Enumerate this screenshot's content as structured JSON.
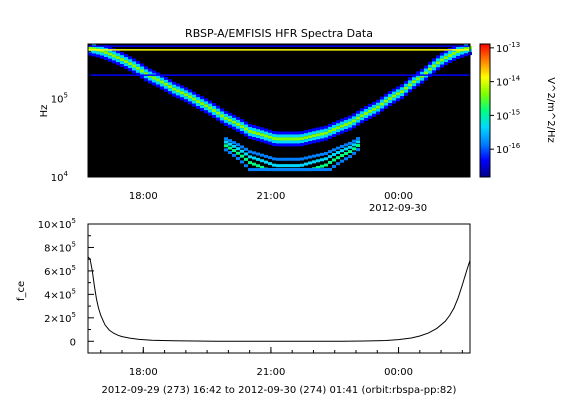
{
  "chart_data": [
    {
      "type": "heatmap",
      "title": "RBSP-A/EMFISIS  HFR Spectra Data",
      "ylabel": "Hz",
      "y_scale": "log",
      "ylim": [
        10000,
        500000
      ],
      "y_ticks": [
        {
          "value": 10000,
          "base": "10",
          "exp": "4"
        },
        {
          "value": 100000,
          "base": "10",
          "exp": "5"
        }
      ],
      "x_ticks": [
        {
          "hours": 1.3,
          "label": "18:00"
        },
        {
          "hours": 4.3,
          "label": "21:00"
        },
        {
          "hours": 7.3,
          "label": "00:00"
        }
      ],
      "x_sublabel": "2012-09-30",
      "xlim_hours": [
        0,
        8.98
      ],
      "colorbar": {
        "label": "V^2/m^2/Hz",
        "scale": "log",
        "range": [
          1.5e-17,
          1.3e-13
        ],
        "ticks": [
          {
            "value": 1e-13,
            "base": "10",
            "exp": "-13"
          },
          {
            "value": 1e-14,
            "base": "10",
            "exp": "-14"
          },
          {
            "value": 1e-15,
            "base": "10",
            "exp": "-15"
          },
          {
            "value": 1e-16,
            "base": "10",
            "exp": "-16"
          }
        ],
        "colors": [
          "#000088",
          "#0000ff",
          "#0080ff",
          "#00d8ff",
          "#00ff80",
          "#80ff00",
          "#ffff00",
          "#ff8000",
          "#ff0000"
        ]
      },
      "emission_band": {
        "hours": [
          0,
          0.3,
          0.8,
          1.4,
          2.0,
          2.6,
          3.2,
          3.8,
          4.4,
          5.0,
          5.6,
          6.2,
          6.8,
          7.4,
          7.9,
          8.3,
          8.7,
          8.98
        ],
        "freq_hz": [
          470000,
          430000,
          330000,
          210000,
          140000,
          95000,
          60000,
          40000,
          32000,
          32000,
          38000,
          52000,
          80000,
          130000,
          210000,
          320000,
          420000,
          470000
        ]
      }
    },
    {
      "type": "line",
      "ylabel": "f_ce",
      "ylim": [
        -100000,
        1000000
      ],
      "y_ticks": [
        {
          "value": 0,
          "mant": "0",
          "exp": ""
        },
        {
          "value": 200000,
          "mant": "2×10",
          "exp": "5"
        },
        {
          "value": 400000,
          "mant": "4×10",
          "exp": "5"
        },
        {
          "value": 600000,
          "mant": "6×10",
          "exp": "5"
        },
        {
          "value": 800000,
          "mant": "8×10",
          "exp": "5"
        },
        {
          "value": 1000000,
          "mant": "10×10",
          "exp": "5"
        }
      ],
      "x_ticks": [
        {
          "hours": 1.3,
          "label": "18:00"
        },
        {
          "hours": 4.3,
          "label": "21:00"
        },
        {
          "hours": 7.3,
          "label": "00:00"
        }
      ],
      "xlim_hours": [
        0,
        8.98
      ],
      "series": [
        {
          "x": [
            0,
            0.05,
            0.1,
            0.15,
            0.2,
            0.25,
            0.3,
            0.4,
            0.5,
            0.6,
            0.7,
            0.8,
            1.0,
            1.2,
            1.5,
            2.0,
            2.5,
            3.0,
            4.5,
            6.0,
            6.5,
            7.0,
            7.3,
            7.6,
            7.8,
            8.0,
            8.2,
            8.4,
            8.5,
            8.6,
            8.7,
            8.8,
            8.9,
            8.98
          ],
          "y": [
            720000,
            700000,
            600000,
            470000,
            360000,
            280000,
            220000,
            140000,
            95000,
            70000,
            52000,
            40000,
            25000,
            16000,
            9000,
            4000,
            2000,
            1000,
            500,
            1000,
            2500,
            7000,
            14000,
            28000,
            45000,
            70000,
            110000,
            170000,
            220000,
            280000,
            370000,
            480000,
            600000,
            690000
          ]
        }
      ]
    }
  ],
  "footer": "2012-09-29 (273) 16:42 to 2012-09-30 (274) 01:41 (orbit:rbspa-pp:82)"
}
